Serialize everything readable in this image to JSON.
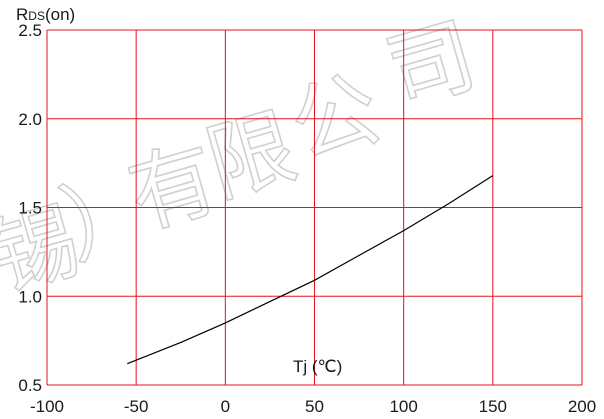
{
  "chart_data": {
    "type": "line",
    "ylabel": "RDS(on)",
    "xlabel": "Tj (℃)",
    "xlim": [
      -100,
      200
    ],
    "ylim": [
      0.5,
      2.5
    ],
    "x_ticks": [
      "-100",
      "-50",
      "0",
      "50",
      "100",
      "150",
      "200"
    ],
    "y_ticks": [
      "0.5",
      "1.0",
      "1.5",
      "2.0",
      "2.5"
    ],
    "grid": true,
    "grid_color": "#e8101a",
    "line_color": "#000000",
    "series": [
      {
        "x": [
          -55,
          -25,
          0,
          25,
          50,
          75,
          100,
          125,
          150
        ],
        "y": [
          0.62,
          0.74,
          0.85,
          0.97,
          1.09,
          1.23,
          1.37,
          1.52,
          1.68
        ]
      }
    ]
  },
  "watermark": "锡）有限公司"
}
